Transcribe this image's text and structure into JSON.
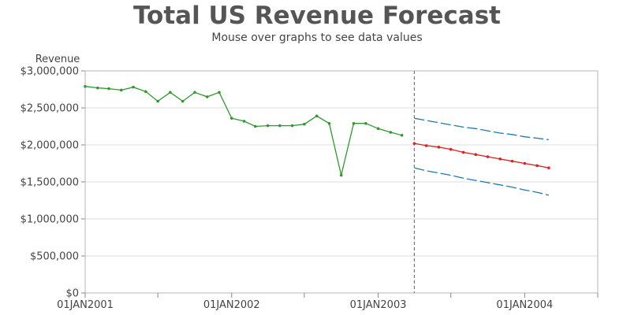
{
  "title": "Total US Revenue Forecast",
  "subtitle": "Mouse over graphs to see data values",
  "chart_data": {
    "type": "line",
    "title": "Total US Revenue Forecast",
    "subtitle": "Mouse over graphs to see data values",
    "xlabel": "",
    "ylabel": "Revenue",
    "ylim": [
      0,
      3000000
    ],
    "y_ticks": [
      0,
      500000,
      1000000,
      1500000,
      2000000,
      2500000,
      3000000
    ],
    "y_tick_labels": [
      "$0",
      "$500,000",
      "$1,000,000",
      "$1,500,000",
      "$2,000,000",
      "$2,500,000",
      "$3,000,000"
    ],
    "x_ticks": [
      "2001-01-01",
      "2001-07-01",
      "2002-01-01",
      "2002-07-01",
      "2003-01-01",
      "2003-07-01",
      "2004-01-01",
      "2004-07-01"
    ],
    "x_tick_labels": [
      "01JAN2001",
      "",
      "01JAN2002",
      "",
      "01JAN2003",
      "",
      "01JAN2004",
      ""
    ],
    "xlim": [
      "2001-01-01",
      "2004-07-01"
    ],
    "reference_line": "2003-04-01",
    "grid": "horizontal",
    "series": [
      {
        "color": "#2e9a2e",
        "style": "solid",
        "markers": true,
        "x": [
          "2001-01-01",
          "2001-02-01",
          "2001-03-01",
          "2001-04-01",
          "2001-05-01",
          "2001-06-01",
          "2001-07-01",
          "2001-08-01",
          "2001-09-01",
          "2001-10-01",
          "2001-11-01",
          "2001-12-01",
          "2002-01-01",
          "2002-02-01",
          "2002-03-01",
          "2002-04-01",
          "2002-05-01",
          "2002-06-01",
          "2002-07-01",
          "2002-08-01",
          "2002-09-01",
          "2002-10-01",
          "2002-11-01",
          "2002-12-01",
          "2003-01-01",
          "2003-02-01",
          "2003-03-01"
        ],
        "values": [
          2790000,
          2770000,
          2760000,
          2740000,
          2780000,
          2720000,
          2590000,
          2710000,
          2590000,
          2710000,
          2650000,
          2710000,
          2360000,
          2320000,
          2250000,
          2260000,
          2260000,
          2260000,
          2280000,
          2390000,
          2290000,
          1590000,
          2290000,
          2290000,
          2220000,
          2170000,
          2130000
        ]
      },
      {
        "color": "#dd2222",
        "style": "solid",
        "markers": true,
        "x": [
          "2003-04-01",
          "2003-05-01",
          "2003-06-01",
          "2003-07-01",
          "2003-08-01",
          "2003-09-01",
          "2003-10-01",
          "2003-11-01",
          "2003-12-01",
          "2004-01-01",
          "2004-02-01",
          "2004-03-01"
        ],
        "values": [
          2020000,
          1990000,
          1970000,
          1940000,
          1900000,
          1870000,
          1840000,
          1810000,
          1780000,
          1750000,
          1720000,
          1690000
        ]
      },
      {
        "color": "#1f77b4",
        "style": "dashed",
        "markers": false,
        "x": [
          "2003-04-01",
          "2003-05-01",
          "2003-06-01",
          "2003-07-01",
          "2003-08-01",
          "2003-09-01",
          "2003-10-01",
          "2003-11-01",
          "2003-12-01",
          "2004-01-01",
          "2004-02-01",
          "2004-03-01"
        ],
        "values": [
          2360000,
          2330000,
          2300000,
          2270000,
          2240000,
          2220000,
          2190000,
          2160000,
          2140000,
          2110000,
          2090000,
          2070000
        ]
      },
      {
        "color": "#1f77b4",
        "style": "dashed",
        "markers": false,
        "x": [
          "2003-04-01",
          "2003-05-01",
          "2003-06-01",
          "2003-07-01",
          "2003-08-01",
          "2003-09-01",
          "2003-10-01",
          "2003-11-01",
          "2003-12-01",
          "2004-01-01",
          "2004-02-01",
          "2004-03-01"
        ],
        "values": [
          1690000,
          1650000,
          1620000,
          1590000,
          1550000,
          1520000,
          1490000,
          1460000,
          1430000,
          1390000,
          1360000,
          1320000
        ]
      }
    ]
  }
}
